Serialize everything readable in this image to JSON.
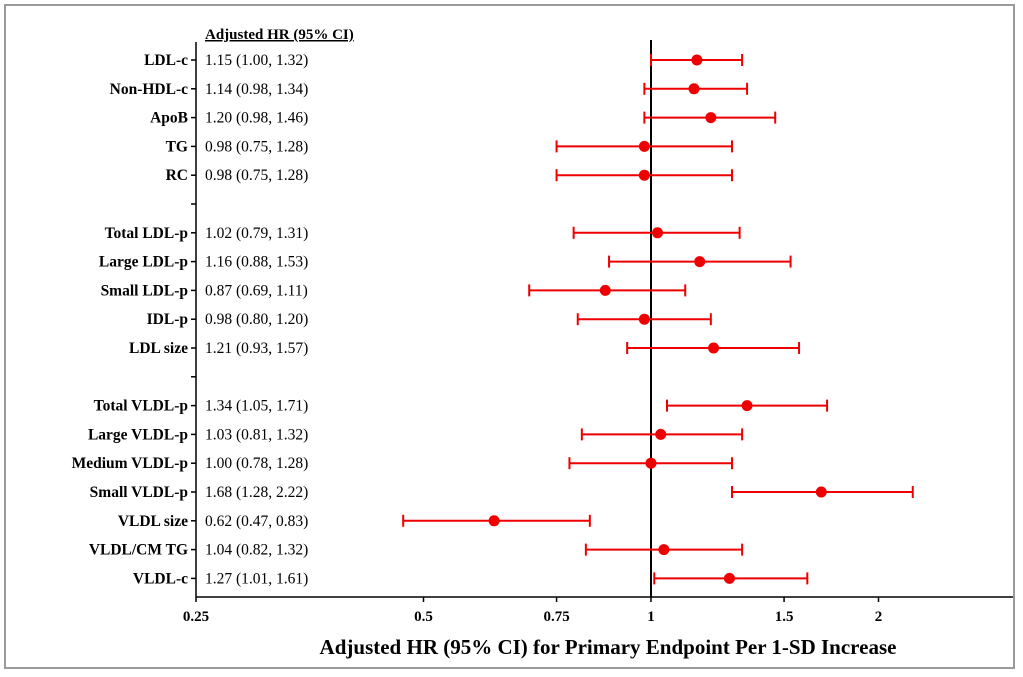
{
  "chart_data": {
    "type": "forest",
    "column_header": "Adjusted HR (95% CI)",
    "xlabel": "Adjusted HR (95% CI) for Primary Endpoint Per 1-SD Increase",
    "x_scale": "log",
    "xlim": [
      0.25,
      2.75
    ],
    "x_ticks": [
      {
        "value": 0.25,
        "label": "0.25"
      },
      {
        "value": 0.5,
        "label": "0.5"
      },
      {
        "value": 0.75,
        "label": "0.75"
      },
      {
        "value": 1,
        "label": "1"
      },
      {
        "value": 1.5,
        "label": "1.5"
      },
      {
        "value": 2,
        "label": "2"
      }
    ],
    "reference_line": 1,
    "marker_color": "#ee0000",
    "rows": [
      {
        "label": "LDL-c",
        "hr_text": "1.15 (1.00, 1.32)",
        "hr": 1.15,
        "lo": 1.0,
        "hi": 1.32
      },
      {
        "label": "Non-HDL-c",
        "hr_text": "1.14 (0.98, 1.34)",
        "hr": 1.14,
        "lo": 0.98,
        "hi": 1.34
      },
      {
        "label": "ApoB",
        "hr_text": "1.20 (0.98, 1.46)",
        "hr": 1.2,
        "lo": 0.98,
        "hi": 1.46
      },
      {
        "label": "TG",
        "hr_text": "0.98 (0.75, 1.28)",
        "hr": 0.98,
        "lo": 0.75,
        "hi": 1.28
      },
      {
        "label": "RC",
        "hr_text": "0.98 (0.75, 1.28)",
        "hr": 0.98,
        "lo": 0.75,
        "hi": 1.28
      },
      {
        "label": "",
        "hr_text": "",
        "blank": true
      },
      {
        "label": "Total LDL-p",
        "hr_text": "1.02 (0.79, 1.31)",
        "hr": 1.02,
        "lo": 0.79,
        "hi": 1.31
      },
      {
        "label": "Large LDL-p",
        "hr_text": "1.16 (0.88, 1.53)",
        "hr": 1.16,
        "lo": 0.88,
        "hi": 1.53
      },
      {
        "label": "Small LDL-p",
        "hr_text": "0.87 (0.69, 1.11)",
        "hr": 0.87,
        "lo": 0.69,
        "hi": 1.11
      },
      {
        "label": "IDL-p",
        "hr_text": "0.98 (0.80, 1.20)",
        "hr": 0.98,
        "lo": 0.8,
        "hi": 1.2
      },
      {
        "label": "LDL size",
        "hr_text": "1.21 (0.93, 1.57)",
        "hr": 1.21,
        "lo": 0.93,
        "hi": 1.57
      },
      {
        "label": "",
        "hr_text": "",
        "blank": true
      },
      {
        "label": "Total VLDL-p",
        "hr_text": "1.34 (1.05, 1.71)",
        "hr": 1.34,
        "lo": 1.05,
        "hi": 1.71
      },
      {
        "label": "Large VLDL-p",
        "hr_text": "1.03 (0.81, 1.32)",
        "hr": 1.03,
        "lo": 0.81,
        "hi": 1.32
      },
      {
        "label": "Medium VLDL-p",
        "hr_text": "1.00 (0.78, 1.28)",
        "hr": 1.0,
        "lo": 0.78,
        "hi": 1.28
      },
      {
        "label": "Small VLDL-p",
        "hr_text": "1.68 (1.28, 2.22)",
        "hr": 1.68,
        "lo": 1.28,
        "hi": 2.22
      },
      {
        "label": "VLDL size",
        "hr_text": "0.62 (0.47, 0.83)",
        "hr": 0.62,
        "lo": 0.47,
        "hi": 0.83
      },
      {
        "label": "VLDL/CM TG",
        "hr_text": "1.04 (0.82, 1.32)",
        "hr": 1.04,
        "lo": 0.82,
        "hi": 1.32
      },
      {
        "label": "VLDL-c",
        "hr_text": "1.27 (1.01, 1.61)",
        "hr": 1.27,
        "lo": 1.01,
        "hi": 1.61
      }
    ]
  }
}
